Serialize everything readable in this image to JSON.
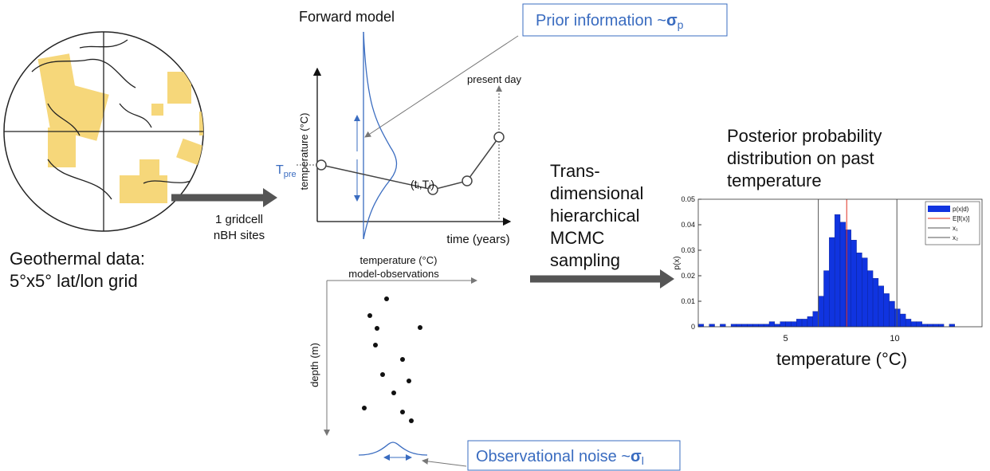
{
  "globe": {
    "caption": [
      "Geothermal data:",
      "5°x5° lat/lon grid"
    ],
    "arrow_label": [
      "1 gridcell",
      "nBH sites"
    ]
  },
  "forward_model": {
    "title": "Forward model",
    "y_label": "temperature (°C)",
    "x_label": "time (years)",
    "present_label": "present day",
    "t_pre": {
      "base": "T",
      "subscript": "pre"
    },
    "point_label": "(tᵢ,Tᵢ)",
    "obs_title": [
      "temperature (°C)",
      "model-observations"
    ],
    "depth_label": "depth (m)"
  },
  "prior_box": {
    "text": "Prior information ~",
    "symbol": "σ",
    "subscript": "p"
  },
  "noise_box": {
    "text": "Observational noise ~",
    "symbol": "σ",
    "subscript": "l"
  },
  "sampling_label": [
    "Trans-",
    "dimensional",
    "hierarchical",
    "MCMC",
    "sampling"
  ],
  "posterior_title": [
    "Posterior probability",
    "distribution on past",
    "temperature"
  ],
  "chart_data": {
    "type": "histogram",
    "x_label": "temperature (°C)",
    "y_label": "p(x)",
    "bins": [
      1,
      1.25,
      1.5,
      1.75,
      2,
      2.25,
      2.5,
      2.75,
      3,
      3.25,
      3.5,
      3.75,
      4,
      4.25,
      4.5,
      4.75,
      5,
      5.25,
      5.5,
      5.75,
      6,
      6.25,
      6.5,
      6.75,
      7,
      7.25,
      7.5,
      7.75,
      8,
      8.25,
      8.5,
      8.75,
      9,
      9.25,
      9.5,
      9.75,
      10,
      10.25,
      10.5,
      10.75,
      11,
      11.25,
      11.5,
      11.75,
      12,
      12.25,
      12.5,
      12.75,
      13,
      13.25,
      13.5,
      13.75,
      14
    ],
    "series": [
      {
        "name": "p(x|d)",
        "color": "#1034e0",
        "values": [
          0.001,
          0,
          0.001,
          0,
          0.001,
          0,
          0.001,
          0.001,
          0.001,
          0.001,
          0.001,
          0.001,
          0.001,
          0.002,
          0.001,
          0.002,
          0.002,
          0.002,
          0.003,
          0.003,
          0.004,
          0.006,
          0.012,
          0.022,
          0.035,
          0.044,
          0.041,
          0.038,
          0.034,
          0.029,
          0.027,
          0.022,
          0.019,
          0.016,
          0.013,
          0.01,
          0.007,
          0.005,
          0.003,
          0.002,
          0.002,
          0.001,
          0.001,
          0.001,
          0.001,
          0,
          0.001,
          0,
          0,
          0,
          0,
          0
        ]
      }
    ],
    "lines": [
      {
        "name": "E[f(x)]",
        "color": "#e03020",
        "value": 7.8
      },
      {
        "name": "x₁",
        "color": "#555555",
        "value": 6.5
      },
      {
        "name": "x₂",
        "color": "#555555",
        "value": 10.1
      }
    ],
    "xlim": [
      1,
      14
    ],
    "ylim": [
      0,
      0.05
    ],
    "xticks": [
      5,
      10
    ],
    "yticks": [
      0,
      0.01,
      0.02,
      0.03,
      0.04,
      0.05
    ],
    "legend": "upper right"
  }
}
